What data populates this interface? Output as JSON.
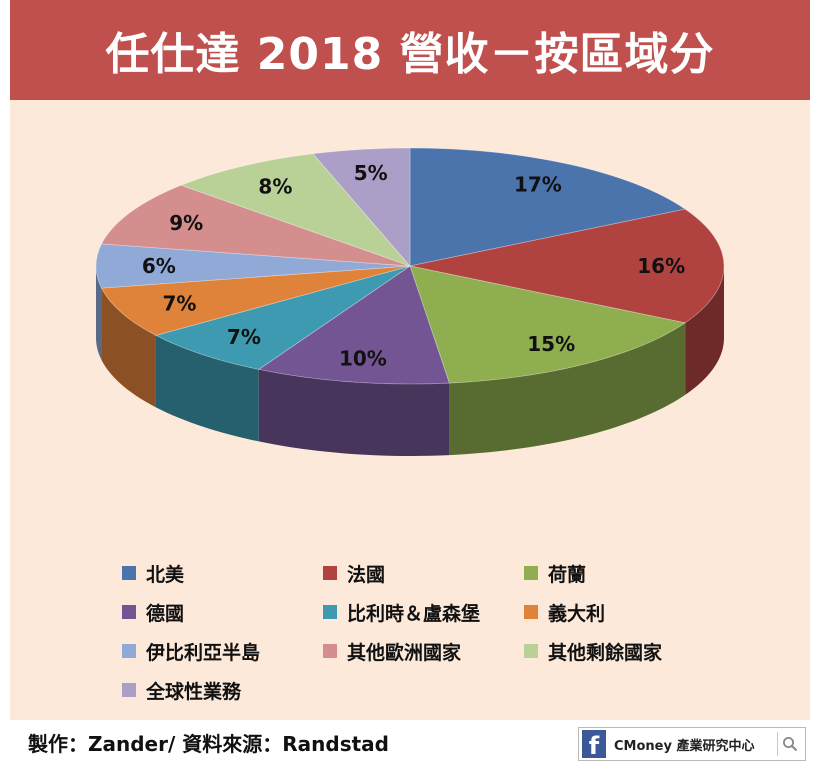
{
  "title": "任仕達 2018 營收－按區域分",
  "chart_data": {
    "type": "pie",
    "title": "任仕達 2018 營收－按區域分",
    "unit": "%",
    "series": [
      {
        "name": "北美",
        "value": 17,
        "label": "17%",
        "color": "#4a74ab"
      },
      {
        "name": "法國",
        "value": 16,
        "label": "16%",
        "color": "#b04340"
      },
      {
        "name": "荷蘭",
        "value": 15,
        "label": "15%",
        "color": "#8eae4f"
      },
      {
        "name": "德國",
        "value": 10,
        "label": "10%",
        "color": "#735594"
      },
      {
        "name": "比利時＆盧森堡",
        "value": 7,
        "label": "7%",
        "color": "#3e9ab0"
      },
      {
        "name": "義大利",
        "value": 7,
        "label": "7%",
        "color": "#e0833a"
      },
      {
        "name": "伊比利亞半島",
        "value": 6,
        "label": "6%",
        "color": "#91a9d6"
      },
      {
        "name": "其他歐洲國家",
        "value": 9,
        "label": "9%",
        "color": "#d48e8e"
      },
      {
        "name": "其他剩餘國家",
        "value": 8,
        "label": "8%",
        "color": "#b9d197"
      },
      {
        "name": "全球性業務",
        "value": 5,
        "label": "5%",
        "color": "#ab9fc7"
      }
    ],
    "legend_position": "bottom"
  },
  "footer": {
    "source": "製作：Zander/ 資料來源：Randstad",
    "brand": "CMoney 產業研究中心",
    "brand_icon": "facebook-icon",
    "search_icon": "search-icon"
  }
}
